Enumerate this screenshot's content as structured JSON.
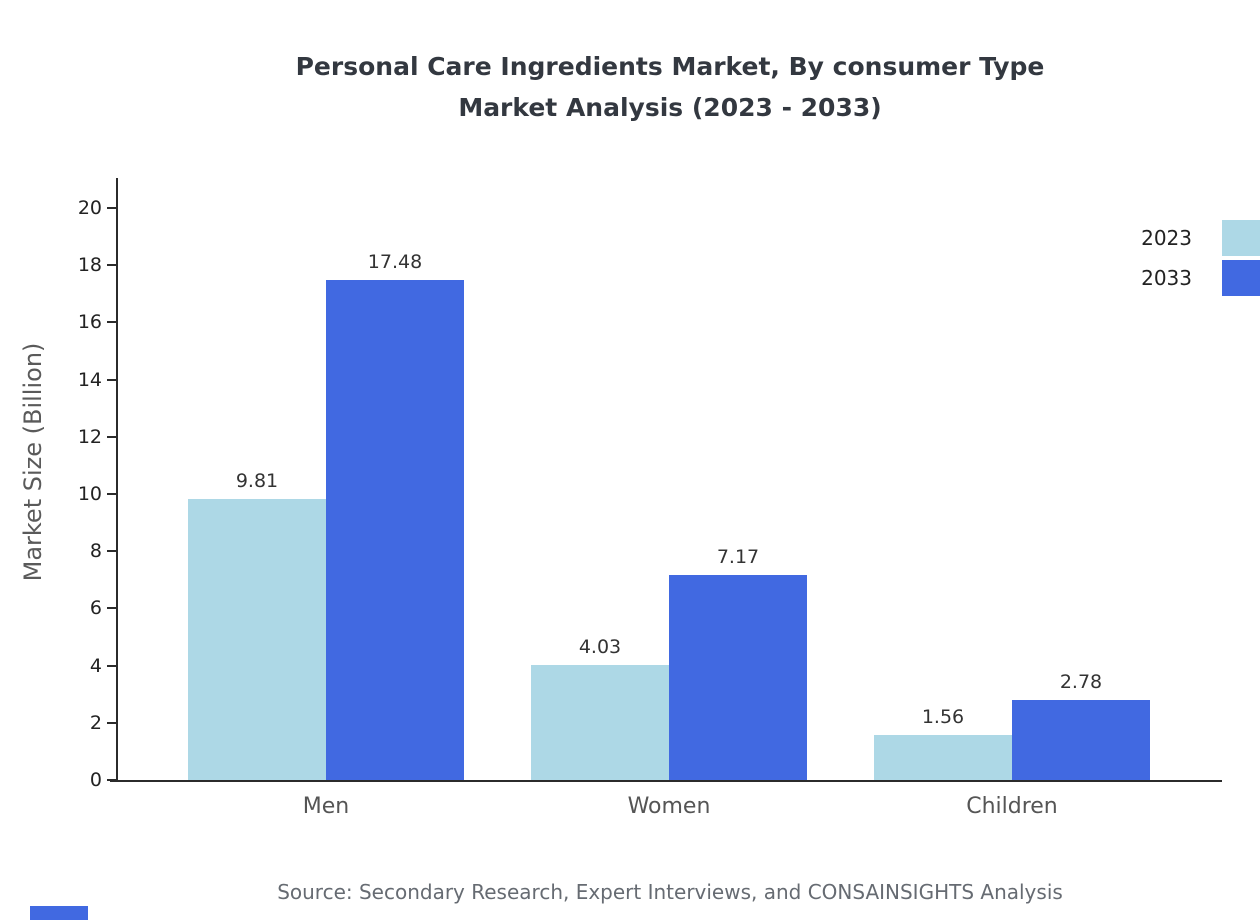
{
  "chart_data": {
    "type": "bar",
    "title": "Personal Care Ingredients Market, By consumer Type",
    "subtitle": "Market Analysis (2023 - 2033)",
    "ylabel": "Market Size (Billion)",
    "xlabel": "",
    "ylim": [
      0,
      20
    ],
    "yticks": [
      0,
      2,
      4,
      6,
      8,
      10,
      12,
      14,
      16,
      18,
      20
    ],
    "grid": false,
    "legend_position": "top-right",
    "categories": [
      "Men",
      "Women",
      "Children"
    ],
    "series": [
      {
        "name": "2023",
        "color": "#add8e6",
        "values": [
          9.81,
          4.03,
          1.56
        ],
        "labels": [
          "9.81",
          "4.03",
          "1.56"
        ]
      },
      {
        "name": "2033",
        "color": "#4169e1",
        "values": [
          17.48,
          7.17,
          2.78
        ],
        "labels": [
          "17.48",
          "7.17",
          "2.78"
        ]
      }
    ],
    "source": "Source: Secondary Research, Expert Interviews, and CONSAINSIGHTS Analysis",
    "accent_color": "#4169e1"
  }
}
